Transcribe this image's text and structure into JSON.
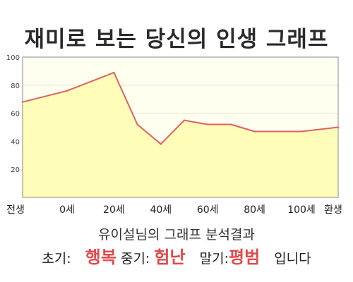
{
  "title": "재미로 보는 당신의 인생 그래프",
  "summary": {
    "title": "유이설님의 그래프 분석결과",
    "early_label": "초기:",
    "early_value": "행복",
    "middle_label": "중기:",
    "middle_value": "험난",
    "late_label": "말기:",
    "late_value": "평범",
    "suffix": "입니다"
  },
  "colors": {
    "line": "#e06060",
    "area": "#fffdb8",
    "plot_bg": "#fffff0",
    "accent_text": "#e04b4b"
  },
  "chart_data": {
    "type": "area",
    "title": "",
    "xlabel": "",
    "ylabel": "",
    "x_tick_labels": [
      "전생",
      "0세",
      "20세",
      "40세",
      "60세",
      "80세",
      "100세",
      "환생"
    ],
    "y_ticks": [
      20,
      40,
      60,
      80,
      100
    ],
    "ylim": [
      0,
      100
    ],
    "grid": true,
    "series": [
      {
        "points": [
          {
            "x": "전생",
            "y": 68
          },
          {
            "x": "0세",
            "y": 76
          },
          {
            "x": "20세",
            "y": 89
          },
          {
            "x": "30세",
            "y": 52
          },
          {
            "x": "40세",
            "y": 38
          },
          {
            "x": "50세",
            "y": 55
          },
          {
            "x": "60세",
            "y": 52
          },
          {
            "x": "70세",
            "y": 52
          },
          {
            "x": "80세",
            "y": 47
          },
          {
            "x": "100세",
            "y": 47
          },
          {
            "x": "환생",
            "y": 50
          }
        ]
      }
    ]
  }
}
